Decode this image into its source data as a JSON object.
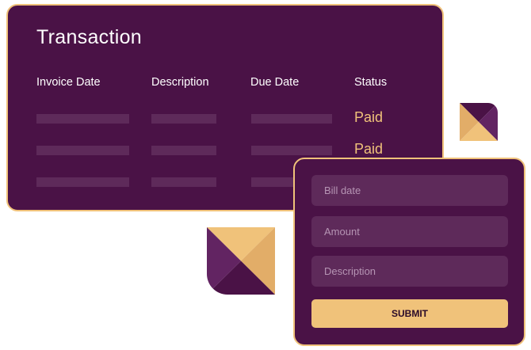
{
  "transaction": {
    "title": "Transaction",
    "columns": [
      "Invoice Date",
      "Description",
      "Due Date",
      "Status"
    ],
    "rows": [
      {
        "status": "Paid"
      },
      {
        "status": "Paid"
      },
      {
        "status": ""
      }
    ]
  },
  "form": {
    "bill_date_placeholder": "Bill date",
    "amount_placeholder": "Amount",
    "description_placeholder": "Description",
    "submit_label": "SUBMIT"
  },
  "colors": {
    "card": "#4a1246",
    "accent": "#f0c27a",
    "field": "#5e2a5a"
  }
}
